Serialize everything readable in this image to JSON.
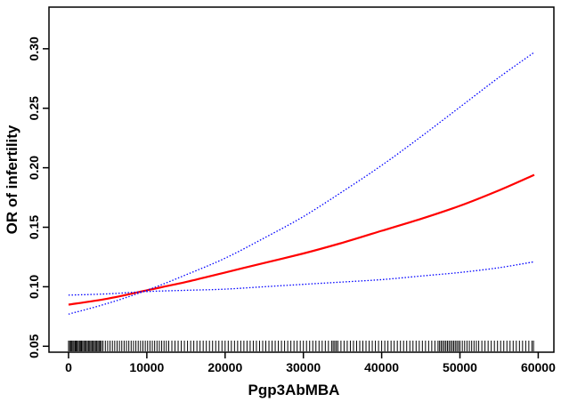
{
  "chart_data": {
    "type": "line",
    "title": "",
    "xlabel": "Pgp3AbMBA",
    "ylabel": "OR of infertility",
    "xlim": [
      -2500,
      62000
    ],
    "ylim": [
      0.045,
      0.335
    ],
    "x_ticks": [
      0,
      10000,
      20000,
      30000,
      40000,
      50000,
      60000
    ],
    "x_tick_labels": [
      "0",
      "10000",
      "20000",
      "30000",
      "40000",
      "50000",
      "60000"
    ],
    "y_ticks": [
      0.05,
      0.1,
      0.15,
      0.2,
      0.25,
      0.3
    ],
    "y_tick_labels": [
      "0.05",
      "0.10",
      "0.15",
      "0.20",
      "0.25",
      "0.30"
    ],
    "grid": false,
    "legend": "none",
    "x": [
      0,
      5000,
      10000,
      15000,
      20000,
      25000,
      30000,
      35000,
      40000,
      45000,
      50000,
      55000,
      59500
    ],
    "series": [
      {
        "role": "estimate",
        "color": "#ff0000",
        "style": "solid",
        "values": [
          0.085,
          0.09,
          0.097,
          0.104,
          0.112,
          0.12,
          0.128,
          0.137,
          0.147,
          0.157,
          0.168,
          0.181,
          0.194
        ]
      },
      {
        "role": "upper-ci",
        "color": "#0000ff",
        "style": "dotted",
        "values": [
          0.093,
          0.094,
          0.096,
          0.097,
          0.098,
          0.1,
          0.102,
          0.104,
          0.106,
          0.109,
          0.112,
          0.116,
          0.121
        ]
      },
      {
        "role": "lower-ci",
        "color": "#0000ff",
        "style": "dotted",
        "values": [
          0.077,
          0.086,
          0.097,
          0.11,
          0.124,
          0.141,
          0.159,
          0.18,
          0.202,
          0.226,
          0.251,
          0.276,
          0.297
        ]
      }
    ],
    "rug": [
      0,
      150,
      300,
      420,
      560,
      700,
      850,
      980,
      1100,
      1250,
      1400,
      1520,
      1650,
      1800,
      1950,
      2100,
      2250,
      2400,
      2550,
      2700,
      2850,
      3000,
      3150,
      3300,
      3450,
      3600,
      3750,
      3900,
      4050,
      4200,
      4400,
      4700,
      5000,
      5300,
      5600,
      5900,
      6200,
      6500,
      6800,
      7100,
      7400,
      7700,
      8000,
      8300,
      8600,
      8900,
      9200,
      9500,
      9800,
      10100,
      10400,
      10700,
      11000,
      11300,
      11600,
      11900,
      12200,
      12500,
      12800,
      13200,
      13600,
      14000,
      14400,
      14800,
      15200,
      15600,
      16000,
      16400,
      16800,
      17200,
      17600,
      18000,
      18400,
      18800,
      19200,
      19600,
      20000,
      20400,
      20800,
      21200,
      21600,
      22000,
      22400,
      22800,
      23200,
      23600,
      24000,
      24400,
      24800,
      25200,
      25600,
      26000,
      26400,
      26800,
      27200,
      27600,
      28000,
      28400,
      28800,
      29200,
      29600,
      30000,
      30400,
      30800,
      31200,
      31600,
      32000,
      32400,
      32800,
      33200,
      33600,
      33800,
      34000,
      34200,
      34400,
      34800,
      35200,
      35600,
      36000,
      36400,
      36800,
      37200,
      37600,
      38000,
      38400,
      38800,
      39200,
      39600,
      40000,
      40400,
      40800,
      41200,
      41600,
      42000,
      42400,
      42800,
      43200,
      43600,
      44000,
      44400,
      44800,
      45200,
      45600,
      46000,
      46400,
      46800,
      47200,
      47400,
      47600,
      47800,
      48000,
      48200,
      48400,
      48600,
      48800,
      49000,
      49200,
      49400,
      49600,
      49800,
      50000,
      50300,
      50600,
      50900,
      51200,
      51500,
      51800,
      52100,
      52400,
      52800,
      53200,
      53600,
      54000,
      54400,
      54800,
      55200,
      55600,
      56000,
      56400,
      56800,
      57200,
      57600,
      58000,
      58400,
      58800,
      59200,
      59400
    ]
  }
}
